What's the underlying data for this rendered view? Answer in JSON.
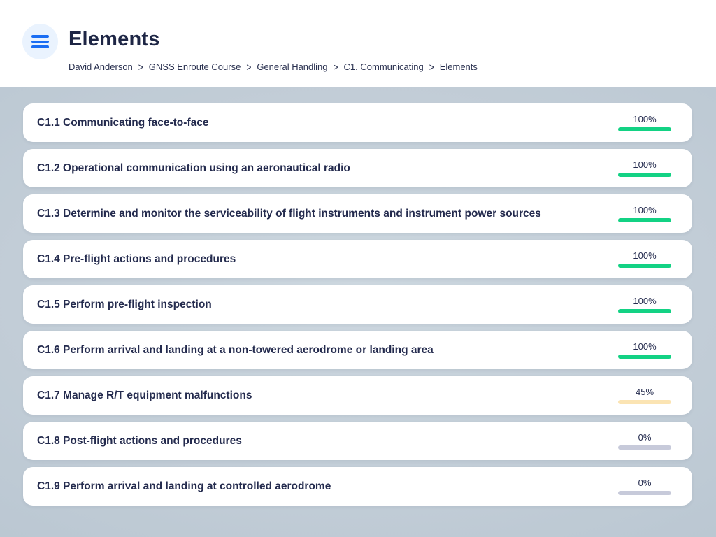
{
  "header": {
    "title": "Elements",
    "breadcrumb": [
      "David Anderson",
      "GNSS Enroute Course",
      "General Handling",
      "C1. Communicating",
      "Elements"
    ],
    "breadcrumb_separator": ">"
  },
  "colors": {
    "accent_blue": "#1b6ef3",
    "menu_button_bg": "#eaf3fe",
    "background": "#c2cdd7",
    "card": "#ffffff",
    "text_navy": "#242b4e",
    "progress_complete": "#13d284",
    "progress_partial": "#f0a63a",
    "progress_partial_track": "#fbe4b3",
    "progress_empty_track": "#c7cada"
  },
  "rows": [
    {
      "label": "C1.1 Communicating face-to-face",
      "progress": 100,
      "percent_label": "100%"
    },
    {
      "label": "C1.2 Operational communication using an aeronautical radio",
      "progress": 100,
      "percent_label": "100%"
    },
    {
      "label": "C1.3 Determine and monitor the serviceability of flight instruments and instrument power sources",
      "progress": 100,
      "percent_label": "100%"
    },
    {
      "label": "C1.4 Pre-flight actions and procedures",
      "progress": 100,
      "percent_label": "100%"
    },
    {
      "label": "C1.5 Perform pre-flight inspection",
      "progress": 100,
      "percent_label": "100%"
    },
    {
      "label": "C1.6 Perform arrival and landing at a non-towered aerodrome or landing area",
      "progress": 100,
      "percent_label": "100%"
    },
    {
      "label": "C1.7 Manage R/T equipment malfunctions",
      "progress": 45,
      "percent_label": "45%"
    },
    {
      "label": "C1.8 Post-flight actions and procedures",
      "progress": 0,
      "percent_label": "0%"
    },
    {
      "label": "C1.9 Perform arrival and landing at controlled aerodrome",
      "progress": 0,
      "percent_label": "0%"
    }
  ]
}
